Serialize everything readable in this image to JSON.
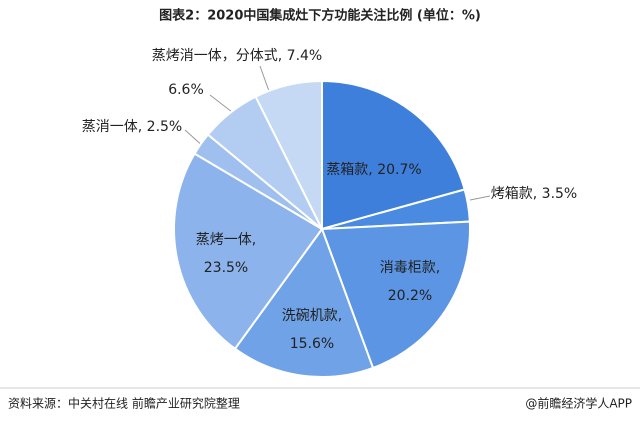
{
  "chart_data": {
    "type": "pie",
    "title": "图表2：2020中国集成灶下方功能关注比例 (单位：%)",
    "categories": [
      "蒸箱款",
      "烤箱款",
      "消毒柜款",
      "洗碗机款",
      "蒸烤一体",
      "蒸消一体",
      null,
      "蒸烤消一体，分体式"
    ],
    "values": [
      20.7,
      3.5,
      20.2,
      15.6,
      23.5,
      2.5,
      6.6,
      7.4
    ],
    "value_labels": [
      [
        "蒸箱款, 20.7%"
      ],
      [
        "烤箱款, 3.5%"
      ],
      [
        "消毒柜款,",
        "20.2%"
      ],
      [
        "洗碗机款,",
        "15.6%"
      ],
      [
        "蒸烤一体,",
        "23.5%"
      ],
      [
        "蒸消一体, 2.5%"
      ],
      [
        "6.6%"
      ],
      [
        "蒸烤消一体，分体式, 7.4%"
      ]
    ],
    "colors": [
      "#3f7fdc",
      "#4a8ae0",
      "#5b95e3",
      "#6fa2e6",
      "#8cb3ec",
      "#9fc0ef",
      "#b3cdf2",
      "#c5d9f5"
    ],
    "source": "资料来源：中关村在线 前瞻产业研究院整理",
    "credit": "@前瞻经济学人APP"
  }
}
